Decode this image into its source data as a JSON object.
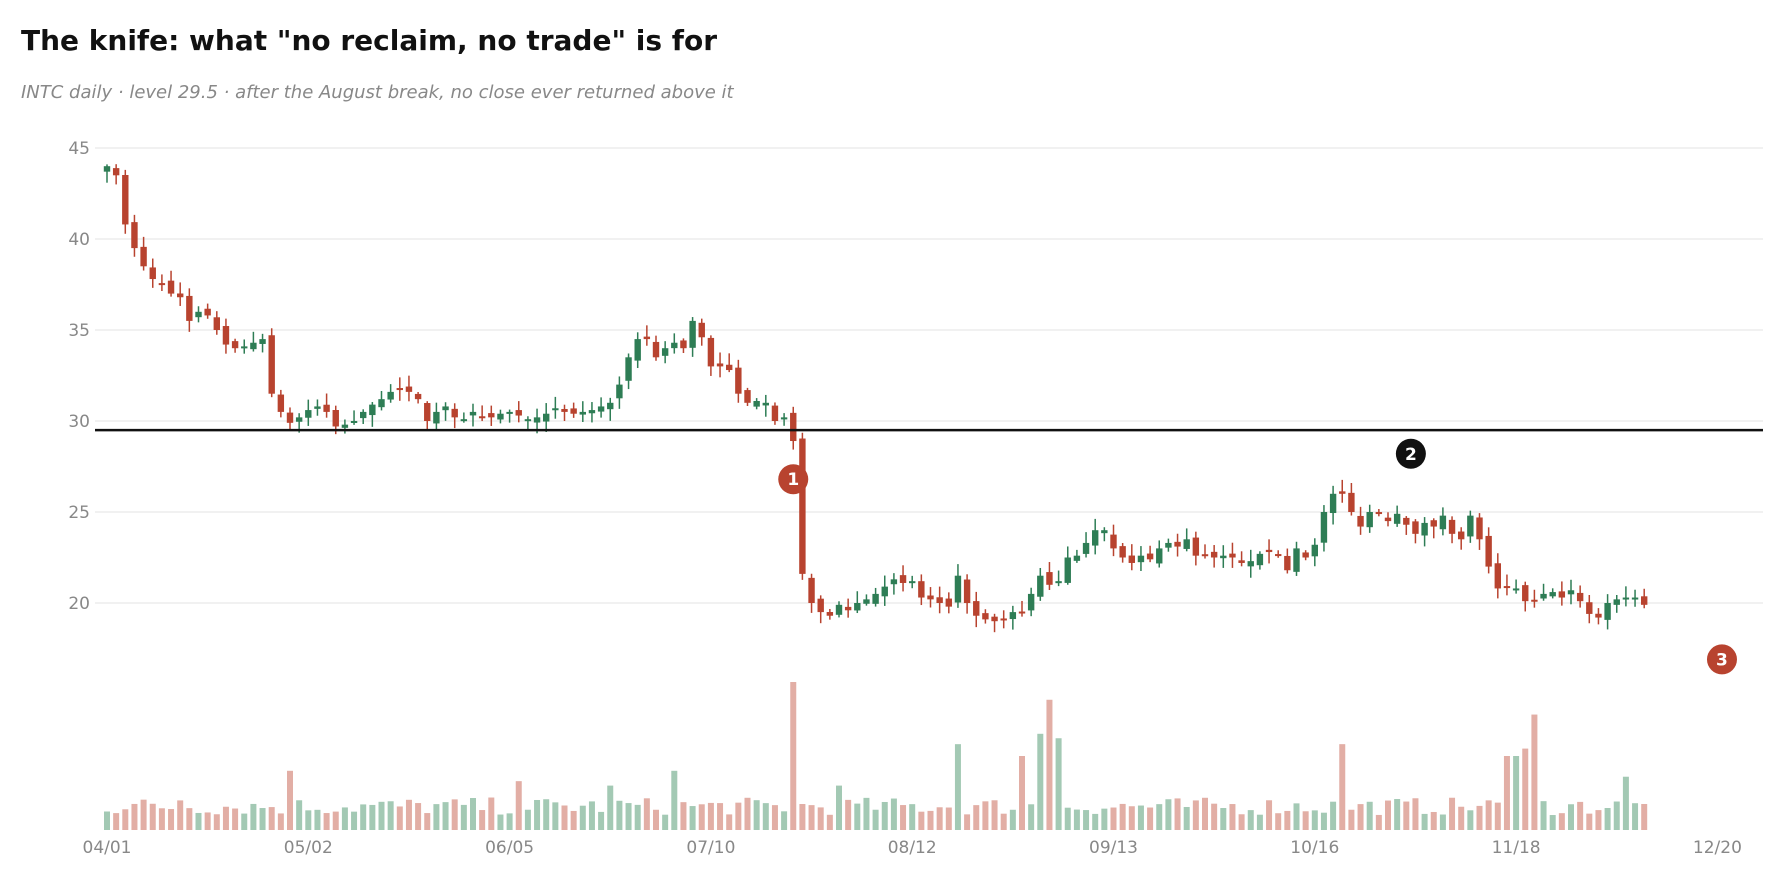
{
  "title": "The knife: what \"no reclaim, no trade\" is for",
  "subtitle": "INTC daily · level 29.5 · after the August break, no close ever returned above it",
  "colors": {
    "up": "#2e7d55",
    "down": "#b8432f",
    "up_volume": "#a3c9b4",
    "down_volume": "#e2aea5",
    "grid": "#e3e3e3",
    "level_line": "#111111",
    "marker_red": "#b8432f",
    "marker_black": "#111111"
  },
  "chart_data": {
    "type": "candlestick",
    "symbol": "INTC",
    "interval": "daily",
    "ylim": [
      15,
      45
    ],
    "y_ticks": [
      "20",
      "25",
      "30",
      "35",
      "40",
      "45"
    ],
    "x_tick_labels": [
      "04/01",
      "05/02",
      "06/05",
      "07/10",
      "08/12",
      "09/13",
      "10/16",
      "11/18",
      "12/20"
    ],
    "x_tick_positions": [
      0,
      22,
      44,
      66,
      88,
      110,
      132,
      154,
      176
    ],
    "grid": true,
    "level": 29.5,
    "anchors": [
      [
        0,
        44
      ],
      [
        1,
        43.5
      ],
      [
        2,
        40.8
      ],
      [
        3,
        39.5
      ],
      [
        4,
        38.5
      ],
      [
        5,
        37.8
      ],
      [
        6,
        37.5
      ],
      [
        7,
        37
      ],
      [
        8,
        36.8
      ],
      [
        9,
        35.5
      ],
      [
        10,
        36
      ],
      [
        11,
        35.8
      ],
      [
        12,
        35
      ],
      [
        13,
        34.2
      ],
      [
        14,
        34
      ],
      [
        15,
        34.1
      ],
      [
        16,
        34.3
      ],
      [
        17,
        34.5
      ],
      [
        18,
        31.5
      ],
      [
        19,
        30.5
      ],
      [
        20,
        29.9
      ],
      [
        21,
        30.2
      ],
      [
        22,
        30.6
      ],
      [
        23,
        30.8
      ],
      [
        24,
        30.5
      ],
      [
        25,
        29.7
      ],
      [
        26,
        29.8
      ],
      [
        27,
        30
      ],
      [
        28,
        30.5
      ],
      [
        29,
        30.9
      ],
      [
        30,
        31.2
      ],
      [
        31,
        31.6
      ],
      [
        32,
        31.7
      ],
      [
        33,
        31.6
      ],
      [
        34,
        31.2
      ],
      [
        35,
        30
      ],
      [
        36,
        30.5
      ],
      [
        37,
        30.8
      ],
      [
        38,
        30.2
      ],
      [
        39,
        30.1
      ],
      [
        40,
        30.5
      ],
      [
        41,
        30.2
      ],
      [
        42,
        30.2
      ],
      [
        43,
        30.4
      ],
      [
        44,
        30.5
      ],
      [
        45,
        30.3
      ],
      [
        46,
        30.1
      ],
      [
        47,
        30.2
      ],
      [
        48,
        30.4
      ],
      [
        49,
        30.7
      ],
      [
        50,
        30.5
      ],
      [
        51,
        30.4
      ],
      [
        52,
        30.5
      ],
      [
        53,
        30.6
      ],
      [
        54,
        30.8
      ],
      [
        55,
        31
      ],
      [
        56,
        32
      ],
      [
        57,
        33.5
      ],
      [
        58,
        34.5
      ],
      [
        59,
        34.5
      ],
      [
        60,
        33.5
      ],
      [
        61,
        34
      ],
      [
        62,
        34.3
      ],
      [
        63,
        34
      ],
      [
        64,
        35.5
      ],
      [
        65,
        34.6
      ],
      [
        66,
        33
      ],
      [
        67,
        33
      ],
      [
        68,
        32.8
      ],
      [
        69,
        31.5
      ],
      [
        70,
        31
      ],
      [
        71,
        31.1
      ],
      [
        72,
        31
      ],
      [
        73,
        30
      ],
      [
        74,
        30.2
      ],
      [
        75,
        28.9
      ],
      [
        76,
        21.6
      ],
      [
        77,
        20
      ],
      [
        78,
        19.5
      ],
      [
        79,
        19.3
      ],
      [
        80,
        19.9
      ],
      [
        81,
        19.6
      ],
      [
        82,
        20
      ],
      [
        83,
        20.2
      ],
      [
        84,
        20.5
      ],
      [
        85,
        20.9
      ],
      [
        86,
        21.3
      ],
      [
        87,
        21.1
      ],
      [
        88,
        21.2
      ],
      [
        89,
        20.3
      ],
      [
        90,
        20.2
      ],
      [
        91,
        20
      ],
      [
        92,
        19.8
      ],
      [
        93,
        21.5
      ],
      [
        94,
        20
      ],
      [
        95,
        19.3
      ],
      [
        96,
        19.1
      ],
      [
        97,
        19
      ],
      [
        98,
        19.1
      ],
      [
        99,
        19.5
      ],
      [
        100,
        19.5
      ],
      [
        101,
        20.5
      ],
      [
        102,
        21.5
      ],
      [
        103,
        21
      ],
      [
        104,
        21.2
      ],
      [
        105,
        22.5
      ],
      [
        106,
        22.6
      ],
      [
        107,
        23.3
      ],
      [
        108,
        24
      ],
      [
        109,
        24
      ],
      [
        110,
        23
      ],
      [
        111,
        22.5
      ],
      [
        112,
        22.2
      ],
      [
        113,
        22.6
      ],
      [
        114,
        22.4
      ],
      [
        115,
        23
      ],
      [
        116,
        23.3
      ],
      [
        117,
        23.1
      ],
      [
        118,
        23.5
      ],
      [
        119,
        22.6
      ],
      [
        120,
        22.6
      ],
      [
        121,
        22.5
      ],
      [
        122,
        22.6
      ],
      [
        123,
        22.5
      ],
      [
        124,
        22.2
      ],
      [
        125,
        22.3
      ],
      [
        126,
        22.7
      ],
      [
        127,
        22.8
      ],
      [
        128,
        22.6
      ],
      [
        129,
        21.8
      ],
      [
        130,
        23
      ],
      [
        131,
        22.5
      ],
      [
        132,
        23.2
      ],
      [
        133,
        25
      ],
      [
        134,
        26
      ],
      [
        135,
        26
      ],
      [
        136,
        25
      ],
      [
        137,
        24.2
      ],
      [
        138,
        25
      ],
      [
        139,
        24.9
      ],
      [
        140,
        24.5
      ],
      [
        141,
        24.9
      ],
      [
        142,
        24.3
      ],
      [
        143,
        23.8
      ],
      [
        144,
        24.4
      ],
      [
        145,
        24.2
      ],
      [
        146,
        24.8
      ],
      [
        147,
        23.8
      ],
      [
        148,
        23.5
      ],
      [
        149,
        24.8
      ],
      [
        150,
        23.5
      ],
      [
        151,
        22
      ],
      [
        152,
        20.8
      ],
      [
        153,
        20.9
      ],
      [
        154,
        20.8
      ],
      [
        155,
        20.1
      ],
      [
        156,
        20.1
      ],
      [
        157,
        20.5
      ],
      [
        158,
        20.6
      ],
      [
        159,
        20.3
      ],
      [
        160,
        20.7
      ],
      [
        161,
        20.1
      ],
      [
        162,
        19.4
      ],
      [
        163,
        19.2
      ],
      [
        164,
        20
      ],
      [
        165,
        20.2
      ],
      [
        166,
        20.3
      ],
      [
        167,
        20.3
      ],
      [
        168,
        19.9
      ]
    ],
    "volume_spikes": [
      [
        8,
        0.2
      ],
      [
        20,
        0.4
      ],
      [
        45,
        0.33
      ],
      [
        55,
        0.3
      ],
      [
        62,
        0.4
      ],
      [
        75,
        1.0
      ],
      [
        80,
        0.3
      ],
      [
        93,
        0.58
      ],
      [
        100,
        0.5
      ],
      [
        102,
        0.65
      ],
      [
        103,
        0.88
      ],
      [
        104,
        0.62
      ],
      [
        135,
        0.58
      ],
      [
        153,
        0.5
      ],
      [
        154,
        0.5
      ],
      [
        155,
        0.55
      ],
      [
        156,
        0.78
      ],
      [
        166,
        0.36
      ]
    ],
    "annotations": [
      {
        "label": "1",
        "at": 75,
        "y": 26.8,
        "color": "red"
      },
      {
        "label": "2",
        "at": 142.5,
        "y": 28.2,
        "color": "black"
      },
      {
        "label": "3",
        "at": 176.5,
        "y": 16.9,
        "color": "red"
      }
    ]
  }
}
